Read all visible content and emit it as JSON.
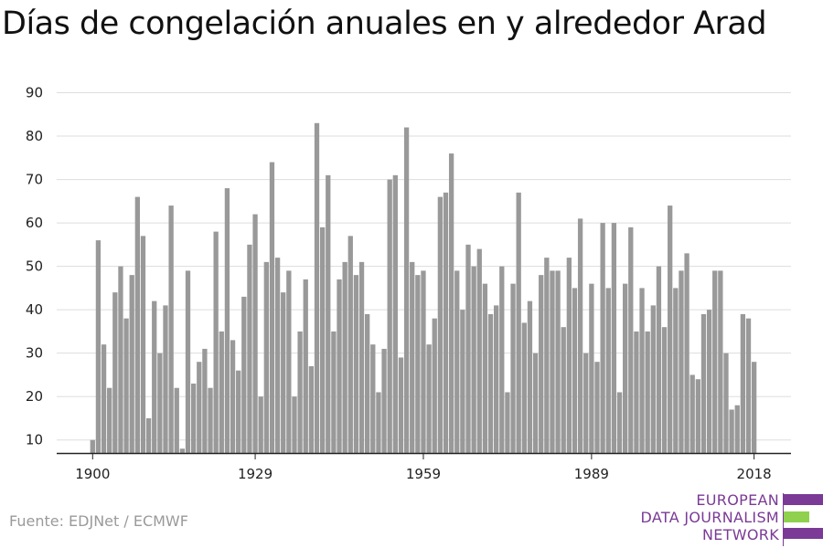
{
  "title": "Días de congelación anuales en y alrededor Arad",
  "source": "Fuente: EDJNet / ECMWF",
  "logo": {
    "lines": [
      "EUROPEAN",
      "DATA JOURNALISM",
      "NETWORK"
    ],
    "colors": {
      "purple": "#7a3a96",
      "green": "#8fd14f"
    }
  },
  "colors": {
    "bar": "#999999",
    "grid": "#dddddd",
    "axis": "#222222",
    "text": "#222222"
  },
  "chart_data": {
    "type": "bar",
    "title": "Días de congelación anuales en y alrededor Arad",
    "xlabel": "",
    "ylabel": "",
    "x_tick_labels": [
      "1900",
      "1929",
      "1959",
      "1989",
      "2018"
    ],
    "y_ticks": [
      10,
      20,
      30,
      40,
      50,
      60,
      70,
      80,
      90
    ],
    "ylim": [
      7,
      92
    ],
    "xlim": [
      1900,
      2018
    ],
    "grid": true,
    "x": [
      1900,
      1901,
      1902,
      1903,
      1904,
      1905,
      1906,
      1907,
      1908,
      1909,
      1910,
      1911,
      1912,
      1913,
      1914,
      1915,
      1916,
      1917,
      1918,
      1919,
      1920,
      1921,
      1922,
      1923,
      1924,
      1925,
      1926,
      1927,
      1928,
      1929,
      1930,
      1931,
      1932,
      1933,
      1934,
      1935,
      1936,
      1937,
      1938,
      1939,
      1940,
      1941,
      1942,
      1943,
      1944,
      1945,
      1946,
      1947,
      1948,
      1949,
      1950,
      1951,
      1952,
      1953,
      1954,
      1955,
      1956,
      1957,
      1958,
      1959,
      1960,
      1961,
      1962,
      1963,
      1964,
      1965,
      1966,
      1967,
      1968,
      1969,
      1970,
      1971,
      1972,
      1973,
      1974,
      1975,
      1976,
      1977,
      1978,
      1979,
      1980,
      1981,
      1982,
      1983,
      1984,
      1985,
      1986,
      1987,
      1988,
      1989,
      1990,
      1991,
      1992,
      1993,
      1994,
      1995,
      1996,
      1997,
      1998,
      1999,
      2000,
      2001,
      2002,
      2003,
      2004,
      2005,
      2006,
      2007,
      2008,
      2009,
      2010,
      2011,
      2012,
      2013,
      2014,
      2015,
      2016,
      2017,
      2018
    ],
    "values": [
      10,
      56,
      32,
      22,
      44,
      50,
      38,
      48,
      66,
      57,
      15,
      42,
      30,
      41,
      64,
      22,
      8,
      49,
      23,
      28,
      31,
      22,
      58,
      35,
      68,
      33,
      26,
      43,
      55,
      62,
      20,
      51,
      74,
      52,
      44,
      49,
      20,
      35,
      47,
      27,
      83,
      59,
      71,
      35,
      47,
      51,
      57,
      48,
      51,
      39,
      32,
      21,
      31,
      70,
      71,
      29,
      82,
      51,
      48,
      49,
      32,
      38,
      66,
      67,
      76,
      49,
      40,
      55,
      50,
      54,
      46,
      39,
      41,
      50,
      21,
      46,
      67,
      37,
      42,
      30,
      48,
      52,
      49,
      49,
      36,
      52,
      45,
      61,
      30,
      46,
      28,
      60,
      45,
      60,
      21,
      46,
      59,
      35,
      45,
      35,
      41,
      50,
      36,
      64,
      45,
      49,
      53,
      25,
      24,
      39,
      40,
      49,
      49,
      30,
      17,
      18,
      39,
      38,
      28
    ]
  }
}
